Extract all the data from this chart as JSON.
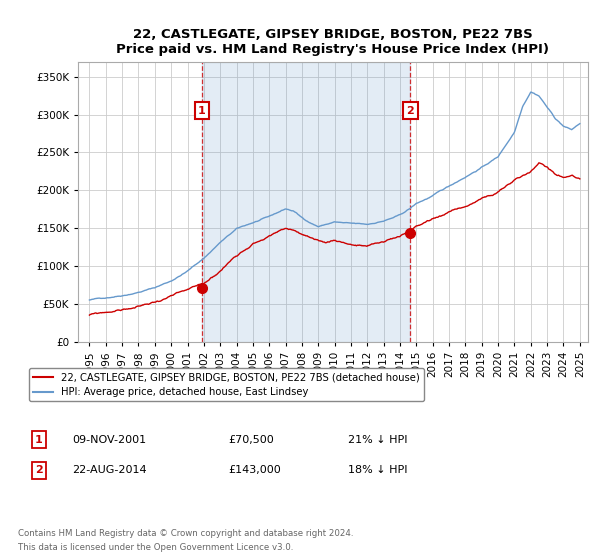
{
  "title": "22, CASTLEGATE, GIPSEY BRIDGE, BOSTON, PE22 7BS",
  "subtitle": "Price paid vs. HM Land Registry's House Price Index (HPI)",
  "legend_line1": "22, CASTLEGATE, GIPSEY BRIDGE, BOSTON, PE22 7BS (detached house)",
  "legend_line2": "HPI: Average price, detached house, East Lindsey",
  "annotation1_label": "1",
  "annotation1_date": "09-NOV-2001",
  "annotation1_price": "£70,500",
  "annotation1_hpi": "21% ↓ HPI",
  "annotation1_year": 2001.87,
  "annotation1_value": 70500,
  "annotation2_label": "2",
  "annotation2_date": "22-AUG-2014",
  "annotation2_price": "£143,000",
  "annotation2_hpi": "18% ↓ HPI",
  "annotation2_year": 2014.64,
  "annotation2_value": 143000,
  "footer_line1": "Contains HM Land Registry data © Crown copyright and database right 2024.",
  "footer_line2": "This data is licensed under the Open Government Licence v3.0.",
  "ylim": [
    0,
    370000
  ],
  "hpi_color": "#6699cc",
  "price_color": "#cc0000",
  "vline_color": "#cc0000",
  "annotation_box_color": "#cc0000",
  "grid_color": "#cccccc",
  "shade_color": "#ddeeff",
  "background_color": "#ffffff"
}
